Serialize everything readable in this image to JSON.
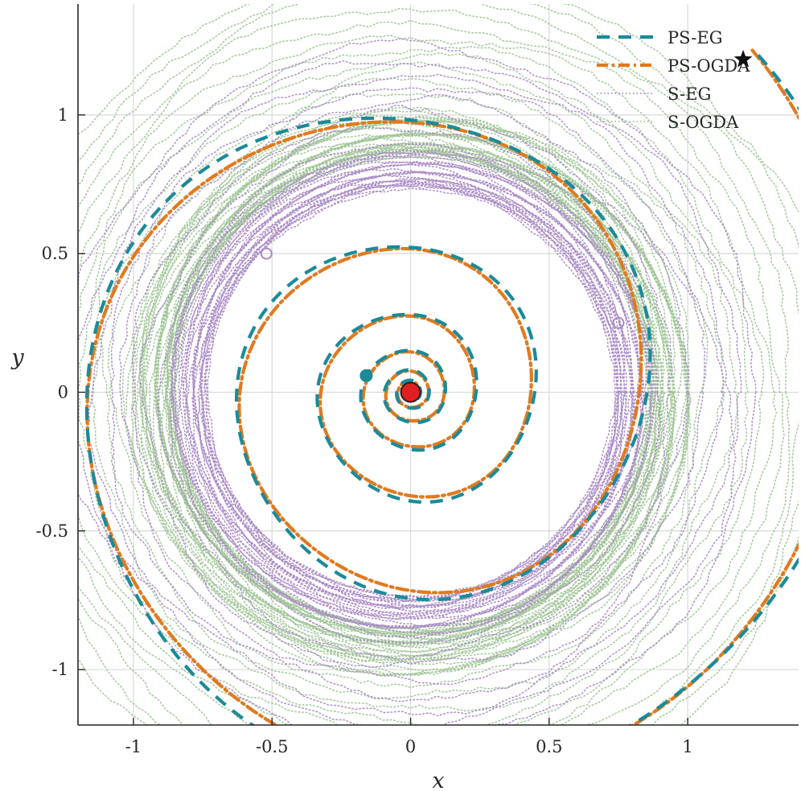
{
  "chart_data": {
    "type": "line",
    "xlabel": "x",
    "ylabel": "y",
    "xlim": [
      -1.2,
      1.4
    ],
    "ylim": [
      -1.2,
      1.4
    ],
    "xticks": [
      {
        "value": -1,
        "label": "-1"
      },
      {
        "value": -0.5,
        "label": "-0.5"
      },
      {
        "value": 0,
        "label": "0"
      },
      {
        "value": 0.5,
        "label": "0.5"
      },
      {
        "value": 1,
        "label": "1"
      }
    ],
    "yticks": [
      {
        "value": -1,
        "label": "-1"
      },
      {
        "value": -0.5,
        "label": "-0.5"
      },
      {
        "value": 0,
        "label": "0"
      },
      {
        "value": 0.5,
        "label": "0.5"
      },
      {
        "value": 1,
        "label": "1"
      }
    ],
    "grid": true,
    "legend_position": "top-right",
    "start_point": {
      "x": 1.2,
      "y": 1.2,
      "marker": "star"
    },
    "solution_point": {
      "x": 0,
      "y": 0,
      "marker": "circle",
      "color": "#e02020"
    },
    "series": [
      {
        "name": "PS-EG",
        "style": "dashed",
        "color": "#1b8a99",
        "description_values": {
          "start_radius": 1.7,
          "end_radius": 0.0,
          "turns": 6
        },
        "end_marker": {
          "x": -0.16,
          "y": 0.06
        }
      },
      {
        "name": "PS-OGDA",
        "style": "dash-dot",
        "color": "#e07a1f",
        "description_values": {
          "start_radius": 1.7,
          "end_radius": 0.0,
          "turns": 6
        }
      },
      {
        "name": "S-EG",
        "style": "dotted",
        "color": "#a98ac4",
        "description_values": {
          "outer_radius": 1.1,
          "inner_radius": 0.75
        },
        "end_marker": {
          "x": -0.52,
          "y": 0.5
        }
      },
      {
        "name": "S-OGDA",
        "style": "dotted",
        "color": "#9fc496",
        "description_values": {
          "outer_radius": 1.4,
          "inner_radius": 0.85
        },
        "end_marker": {
          "x": 0.75,
          "y": 0.25
        }
      }
    ]
  }
}
